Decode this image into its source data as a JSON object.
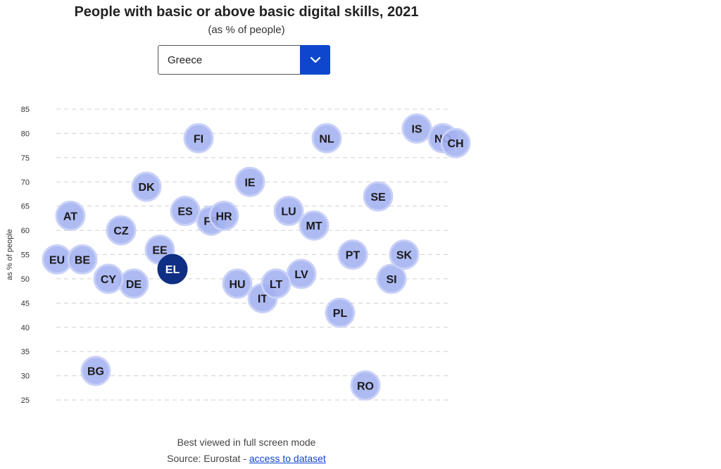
{
  "header": {
    "title": "People with basic or above basic digital skills, 2021",
    "subtitle": "(as % of people)"
  },
  "country_select": {
    "selected": "Greece",
    "button_icon": "chevron-down-icon"
  },
  "footer": {
    "note": "Best viewed in full screen mode",
    "source_prefix": "Source: Eurostat - ",
    "dataset_link": "access to dataset"
  },
  "colors": {
    "bubble": "#a3b1f0",
    "highlight": "#0e2f83",
    "accent": "#0e47cb"
  },
  "chart_data": {
    "type": "scatter",
    "title": "People with basic or above basic digital skills, 2021",
    "subtitle": "(as % of people)",
    "ylabel": "as % of people",
    "ylim": [
      25,
      85
    ],
    "yticks": [
      85,
      80,
      75,
      70,
      65,
      60,
      55,
      50,
      45,
      40,
      35,
      30,
      25
    ],
    "grid": true,
    "highlighted": "EL",
    "points": [
      {
        "label": "EU",
        "value": 54
      },
      {
        "label": "BE",
        "value": 54
      },
      {
        "label": "BG",
        "value": 31
      },
      {
        "label": "CZ",
        "value": 60
      },
      {
        "label": "DK",
        "value": 69
      },
      {
        "label": "DE",
        "value": 49
      },
      {
        "label": "EE",
        "value": 56
      },
      {
        "label": "IE",
        "value": 70
      },
      {
        "label": "EL",
        "value": 52
      },
      {
        "label": "ES",
        "value": 64
      },
      {
        "label": "FR",
        "value": 62
      },
      {
        "label": "HR",
        "value": 63
      },
      {
        "label": "IT",
        "value": 46
      },
      {
        "label": "CY",
        "value": 50
      },
      {
        "label": "LV",
        "value": 51
      },
      {
        "label": "LT",
        "value": 49
      },
      {
        "label": "LU",
        "value": 64
      },
      {
        "label": "HU",
        "value": 49
      },
      {
        "label": "MT",
        "value": 61
      },
      {
        "label": "NL",
        "value": 79
      },
      {
        "label": "AT",
        "value": 63
      },
      {
        "label": "PL",
        "value": 43
      },
      {
        "label": "PT",
        "value": 55
      },
      {
        "label": "RO",
        "value": 28
      },
      {
        "label": "SI",
        "value": 50
      },
      {
        "label": "SK",
        "value": 55
      },
      {
        "label": "FI",
        "value": 79
      },
      {
        "label": "SE",
        "value": 67
      },
      {
        "label": "IS",
        "value": 81
      },
      {
        "label": "NO",
        "value": 79
      },
      {
        "label": "CH",
        "value": 78
      }
    ]
  }
}
